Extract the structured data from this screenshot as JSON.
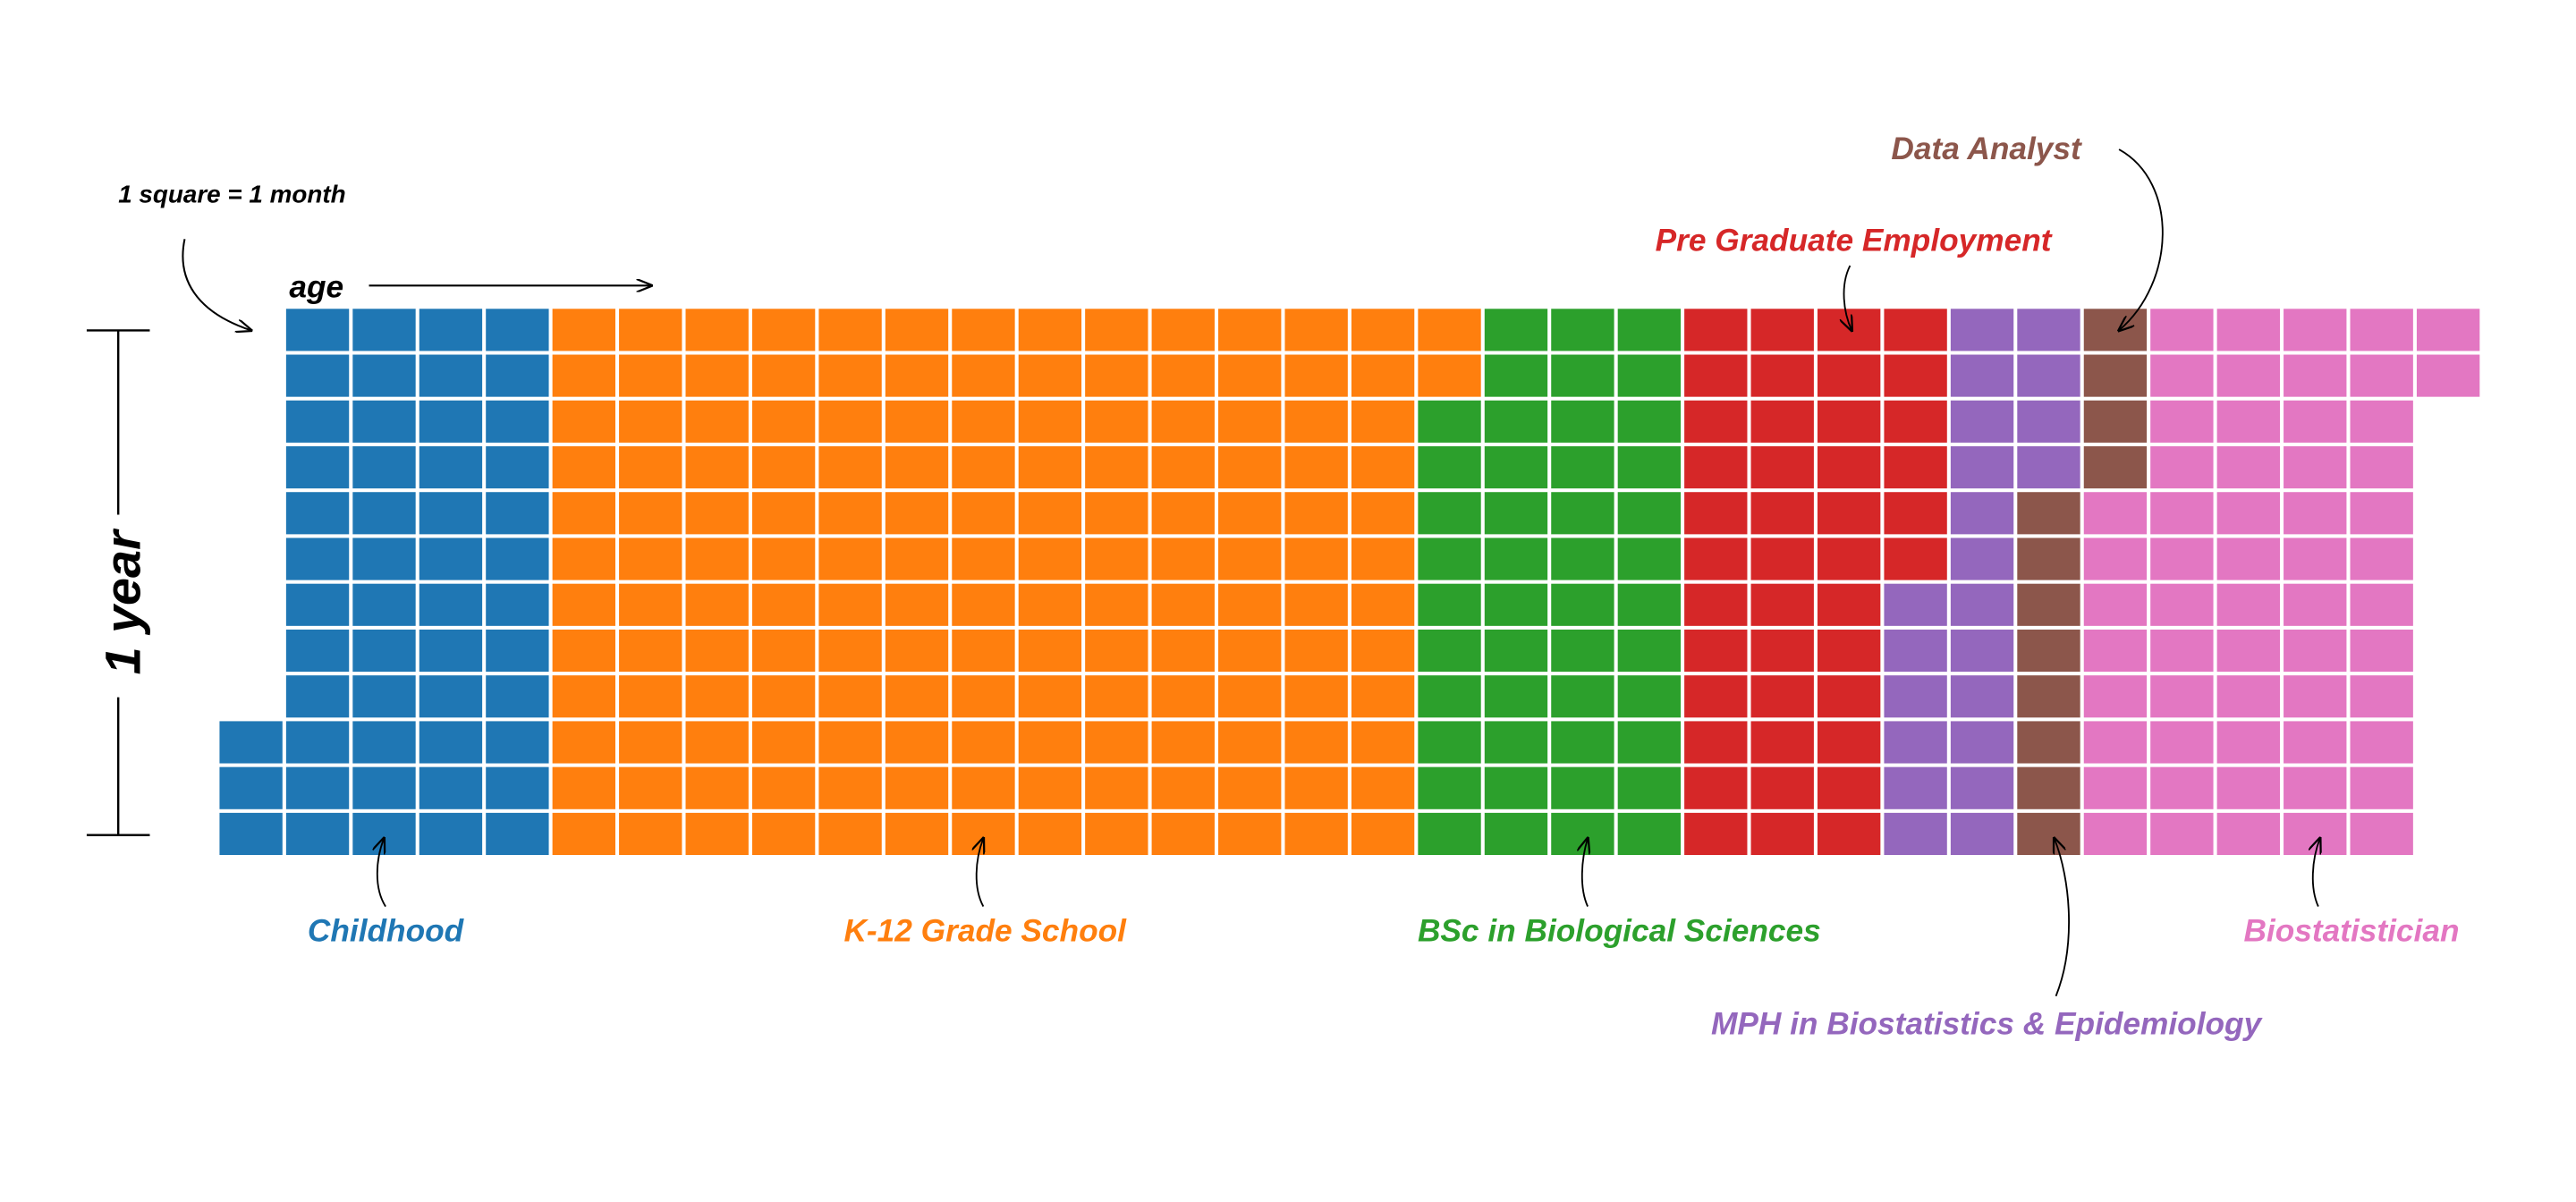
{
  "chart_data": {
    "type": "waffle",
    "unit_note": "1 square = 1 month",
    "x_label": "age",
    "y_label": "1 year",
    "months_per_column": 12,
    "first_column_start_month": 9,
    "phases": [
      {
        "name": "Childhood",
        "months": 51,
        "color": "#1f77b4"
      },
      {
        "name": "K-12 Grade School",
        "months": 158,
        "color": "#ff7f0e"
      },
      {
        "name": "BSc in Biological Sciences",
        "months": 46,
        "color": "#2ca02c"
      },
      {
        "name": "Pre Graduate Employment",
        "months": 42,
        "color": "#d62728"
      },
      {
        "name": "MPH in Biostatistics & Epidemiology",
        "months": 22,
        "color": "#9467bd"
      },
      {
        "name": "Data Analyst",
        "months": 12,
        "color": "#8c564b"
      },
      {
        "name": "Biostatistician",
        "months": 58,
        "color": "#e377c2"
      }
    ]
  }
}
